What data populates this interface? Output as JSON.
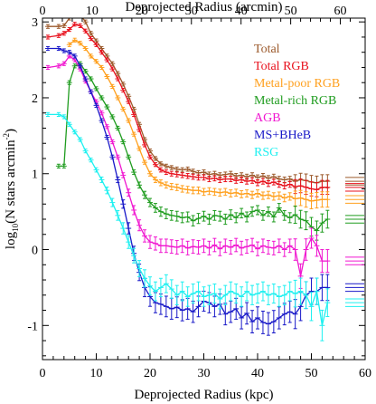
{
  "chart_data": {
    "type": "line",
    "xlabel": "Deprojected Radius (kpc)",
    "x2label": "Deprojected Radius (arcmin)",
    "ylabel": "log10(N stars arcmin-2)",
    "ylabel_parts": {
      "main": "log",
      "sub": "10",
      "mid": "(N stars arcmin",
      "sup": "-2",
      "end": ")"
    },
    "xlim": [
      0,
      60
    ],
    "ylim": [
      -1.45,
      3.05
    ],
    "x_ticks": [
      "0",
      "10",
      "20",
      "30",
      "40",
      "50",
      "60"
    ],
    "x2lim": [
      0,
      65
    ],
    "x2_ticks": [
      "0",
      "10",
      "20",
      "30",
      "40",
      "50",
      "60"
    ],
    "y_ticks": [
      "-1",
      "0",
      "1",
      "2",
      "3"
    ],
    "legend_position": "top-right",
    "series": [
      {
        "name": "Total",
        "color": "#9c5a2c",
        "x": [
          1,
          3,
          4,
          5,
          6,
          7,
          8,
          9,
          10,
          11,
          12,
          13,
          14,
          15,
          16,
          17,
          18,
          19,
          20,
          21,
          22,
          23,
          24,
          25,
          26,
          27,
          28,
          29,
          30,
          31,
          32,
          33,
          34,
          35,
          36,
          37,
          38,
          39,
          40,
          41,
          42,
          43,
          44,
          45,
          46,
          47,
          48,
          49,
          50,
          51,
          52,
          53
        ],
        "y": [
          2.94,
          2.94,
          2.95,
          3.05,
          3.08,
          3.1,
          3.0,
          2.85,
          2.75,
          2.65,
          2.55,
          2.45,
          2.32,
          2.18,
          2.02,
          1.85,
          1.65,
          1.45,
          1.3,
          1.2,
          1.13,
          1.1,
          1.08,
          1.06,
          1.05,
          1.06,
          1.03,
          1.01,
          1.02,
          0.99,
          1.0,
          0.98,
          0.99,
          1.0,
          0.97,
          0.98,
          0.96,
          0.98,
          0.95,
          0.97,
          0.94,
          0.96,
          0.93,
          0.92,
          0.93,
          0.9,
          0.92,
          0.91,
          0.89,
          0.88,
          0.9,
          0.9
        ]
      },
      {
        "name": "Total RGB",
        "color": "#e8121e",
        "x": [
          1,
          3,
          4,
          5,
          6,
          7,
          8,
          9,
          10,
          11,
          12,
          13,
          14,
          15,
          16,
          17,
          18,
          19,
          20,
          21,
          22,
          23,
          24,
          25,
          26,
          27,
          28,
          29,
          30,
          31,
          32,
          33,
          34,
          35,
          36,
          37,
          38,
          39,
          40,
          41,
          42,
          43,
          44,
          45,
          46,
          47,
          48,
          49,
          50,
          51,
          52,
          53
        ],
        "y": [
          2.8,
          2.82,
          2.85,
          2.9,
          2.97,
          2.95,
          2.88,
          2.78,
          2.7,
          2.6,
          2.5,
          2.38,
          2.25,
          2.1,
          1.95,
          1.78,
          1.58,
          1.38,
          1.22,
          1.12,
          1.05,
          1.02,
          1.0,
          0.99,
          0.98,
          0.97,
          0.96,
          0.95,
          0.95,
          0.93,
          0.94,
          0.92,
          0.93,
          0.93,
          0.91,
          0.92,
          0.9,
          0.91,
          0.88,
          0.9,
          0.87,
          0.89,
          0.86,
          0.84,
          0.86,
          0.83,
          0.84,
          0.82,
          0.8,
          0.79,
          0.82,
          0.82
        ]
      },
      {
        "name": "Metal-poor RGB",
        "color": "#ffa01e",
        "x": [
          5,
          6,
          7,
          8,
          9,
          10,
          11,
          12,
          13,
          14,
          15,
          16,
          17,
          18,
          19,
          20,
          21,
          22,
          23,
          24,
          25,
          26,
          27,
          28,
          29,
          30,
          31,
          32,
          33,
          34,
          35,
          36,
          37,
          38,
          39,
          40,
          41,
          42,
          43,
          44,
          45,
          46,
          47,
          48,
          49,
          50,
          51,
          52,
          53
        ],
        "y": [
          2.7,
          2.76,
          2.72,
          2.65,
          2.55,
          2.48,
          2.4,
          2.28,
          2.15,
          2.0,
          1.85,
          1.7,
          1.52,
          1.33,
          1.15,
          1.0,
          0.92,
          0.88,
          0.85,
          0.83,
          0.82,
          0.8,
          0.79,
          0.78,
          0.78,
          0.76,
          0.77,
          0.76,
          0.75,
          0.76,
          0.74,
          0.75,
          0.73,
          0.74,
          0.72,
          0.74,
          0.71,
          0.72,
          0.7,
          0.71,
          0.68,
          0.7,
          0.67,
          0.68,
          0.66,
          0.64,
          0.65,
          0.66,
          0.66
        ]
      },
      {
        "name": "Metal-rich RGB",
        "color": "#1f9c1f",
        "x": [
          3,
          4,
          5,
          6,
          7,
          8,
          9,
          10,
          11,
          12,
          13,
          14,
          15,
          16,
          17,
          18,
          19,
          20,
          21,
          22,
          23,
          24,
          25,
          26,
          27,
          28,
          29,
          30,
          31,
          32,
          33,
          34,
          35,
          36,
          37,
          38,
          39,
          40,
          41,
          42,
          43,
          44,
          45,
          46,
          47,
          48,
          49,
          50,
          51,
          52,
          53
        ],
        "y": [
          1.1,
          1.1,
          2.2,
          2.42,
          2.45,
          2.35,
          2.25,
          2.12,
          2.0,
          1.88,
          1.75,
          1.6,
          1.42,
          1.22,
          1.02,
          0.85,
          0.72,
          0.62,
          0.55,
          0.5,
          0.47,
          0.45,
          0.44,
          0.42,
          0.43,
          0.38,
          0.41,
          0.44,
          0.4,
          0.45,
          0.44,
          0.4,
          0.46,
          0.42,
          0.48,
          0.43,
          0.5,
          0.52,
          0.45,
          0.5,
          0.43,
          0.55,
          0.45,
          0.42,
          0.46,
          0.4,
          0.38,
          0.3,
          0.25,
          0.35,
          0.4
        ]
      },
      {
        "name": "AGB",
        "color": "#f016d0",
        "x": [
          1,
          3,
          4,
          5,
          6,
          7,
          8,
          9,
          10,
          11,
          12,
          13,
          14,
          15,
          16,
          17,
          18,
          19,
          20,
          21,
          22,
          23,
          24,
          25,
          26,
          27,
          28,
          29,
          30,
          31,
          32,
          33,
          34,
          35,
          36,
          37,
          38,
          39,
          40,
          41,
          42,
          43,
          44,
          45,
          46,
          47,
          48,
          49,
          50,
          51,
          52,
          53
        ],
        "y": [
          2.4,
          2.42,
          2.45,
          2.55,
          2.5,
          2.38,
          2.22,
          2.08,
          1.95,
          1.8,
          1.62,
          1.42,
          1.22,
          0.98,
          0.75,
          0.52,
          0.32,
          0.18,
          0.1,
          0.08,
          0.05,
          0.05,
          0.04,
          0.03,
          0.05,
          0.02,
          0.04,
          0.03,
          0.05,
          0.02,
          0.06,
          0.01,
          0.05,
          0.03,
          0.06,
          0.02,
          0.04,
          0.06,
          0.01,
          0.05,
          0.03,
          0.02,
          0.05,
          0.0,
          0.05,
          0.0,
          -0.35,
          0.0,
          0.15,
          0.05,
          -0.15,
          -0.15
        ]
      },
      {
        "name": "MS+BHeB",
        "color": "#1818c8",
        "x": [
          1,
          3,
          4,
          5,
          6,
          7,
          8,
          9,
          10,
          11,
          12,
          13,
          14,
          15,
          16,
          17,
          18,
          19,
          20,
          21,
          22,
          23,
          24,
          25,
          26,
          27,
          28,
          29,
          30,
          31,
          32,
          33,
          34,
          35,
          36,
          37,
          38,
          39,
          40,
          41,
          42,
          43,
          44,
          45,
          46,
          47,
          48,
          49,
          50,
          51,
          52,
          53
        ],
        "y": [
          2.65,
          2.65,
          2.62,
          2.6,
          2.55,
          2.42,
          2.25,
          2.08,
          1.9,
          1.7,
          1.48,
          1.22,
          0.92,
          0.6,
          0.28,
          -0.05,
          -0.3,
          -0.5,
          -0.62,
          -0.7,
          -0.72,
          -0.75,
          -0.78,
          -0.76,
          -0.8,
          -0.78,
          -0.82,
          -0.75,
          -0.68,
          -0.7,
          -0.75,
          -0.72,
          -0.85,
          -0.82,
          -0.78,
          -0.9,
          -0.84,
          -0.95,
          -0.9,
          -0.96,
          -0.98,
          -0.95,
          -0.9,
          -0.85,
          -0.82,
          -0.85,
          -0.75,
          -0.6,
          -0.55,
          -0.55,
          -0.5,
          -0.5
        ]
      },
      {
        "name": "RSG",
        "color": "#1ef0f0",
        "x": [
          1,
          3,
          4,
          5,
          6,
          7,
          8,
          9,
          10,
          11,
          12,
          13,
          14,
          15,
          16,
          17,
          18,
          19,
          20,
          21,
          22,
          23,
          24,
          25,
          26,
          27,
          28,
          29,
          30,
          31,
          32,
          33,
          34,
          35,
          36,
          37,
          38,
          39,
          40,
          41,
          42,
          43,
          44,
          45,
          46,
          47,
          48,
          49,
          50,
          51,
          52,
          53
        ],
        "y": [
          1.78,
          1.78,
          1.75,
          1.65,
          1.55,
          1.45,
          1.3,
          1.18,
          1.05,
          0.92,
          0.78,
          0.62,
          0.45,
          0.28,
          0.1,
          -0.08,
          -0.25,
          -0.38,
          -0.48,
          -0.55,
          -0.5,
          -0.45,
          -0.52,
          -0.6,
          -0.55,
          -0.62,
          -0.58,
          -0.55,
          -0.62,
          -0.6,
          -0.58,
          -0.65,
          -0.6,
          -0.55,
          -0.58,
          -0.62,
          -0.55,
          -0.6,
          -0.58,
          -0.55,
          -0.6,
          -0.58,
          -0.62,
          -0.6,
          -0.55,
          -0.58,
          -0.55,
          -0.6,
          -0.75,
          -0.55,
          -1.0,
          -0.7
        ]
      }
    ]
  }
}
